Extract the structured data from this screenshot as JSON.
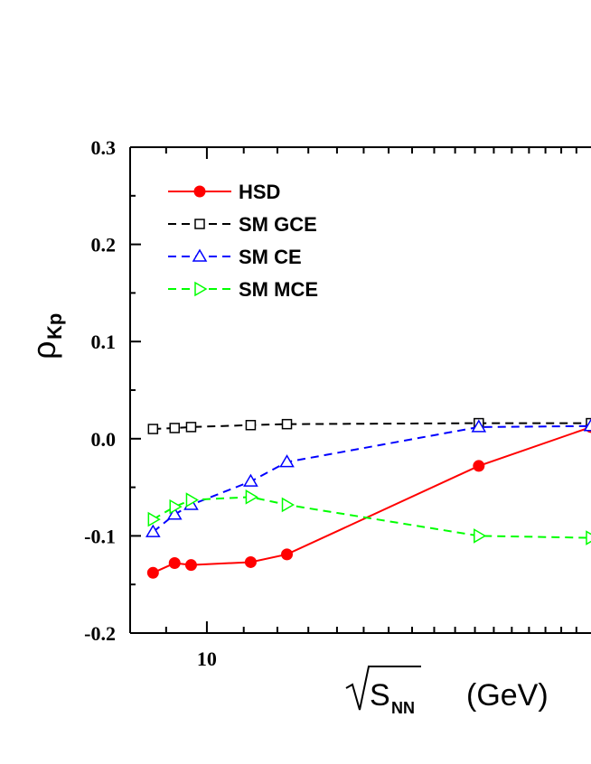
{
  "chart_data": {
    "type": "line",
    "x_scale": "log",
    "xlim": [
      8.2,
      27
    ],
    "ylim": [
      -0.2,
      0.3
    ],
    "x_ticks": [
      {
        "value": 10,
        "label": "10"
      }
    ],
    "y_ticks": [
      {
        "value": 0.3,
        "label": "0.3"
      },
      {
        "value": 0.2,
        "label": "0.2"
      },
      {
        "value": 0.1,
        "label": "0.1"
      },
      {
        "value": 0.0,
        "label": "0.0"
      },
      {
        "value": -0.1,
        "label": "-0.1"
      },
      {
        "value": -0.2,
        "label": "-0.2"
      }
    ],
    "ylabel": {
      "main": "ρ",
      "sub": "Kp"
    },
    "xlabel": {
      "main": "S",
      "sub": "NN",
      "unit": "(GeV)"
    },
    "legend_position": "top-left",
    "grid": false,
    "series": [
      {
        "name": "HSD",
        "color": "#ff0000",
        "line": "solid",
        "marker": "filled-circle",
        "x": [
          8.7,
          9.2,
          9.6,
          11.2,
          12.3,
          20.2,
          27
        ],
        "y": [
          -0.138,
          -0.128,
          -0.13,
          -0.127,
          -0.119,
          -0.028,
          0.012
        ]
      },
      {
        "name": "SM GCE",
        "color": "#000000",
        "line": "dashed",
        "marker": "open-square",
        "x": [
          8.7,
          9.2,
          9.6,
          11.2,
          12.3,
          20.2,
          27
        ],
        "y": [
          0.01,
          0.011,
          0.012,
          0.014,
          0.015,
          0.016,
          0.016
        ]
      },
      {
        "name": "SM CE",
        "color": "#0000ff",
        "line": "dashed",
        "marker": "open-triangle-up",
        "x": [
          8.7,
          9.2,
          9.6,
          11.2,
          12.3,
          20.2,
          27
        ],
        "y": [
          -0.096,
          -0.078,
          -0.068,
          -0.044,
          -0.024,
          0.012,
          0.013
        ]
      },
      {
        "name": "SM MCE",
        "color": "#00ff00",
        "line": "dashed",
        "marker": "open-triangle-right",
        "x": [
          8.7,
          9.2,
          9.6,
          11.2,
          12.3,
          20.2,
          27
        ],
        "y": [
          -0.083,
          -0.07,
          -0.063,
          -0.06,
          -0.068,
          -0.1,
          -0.102
        ]
      }
    ]
  }
}
